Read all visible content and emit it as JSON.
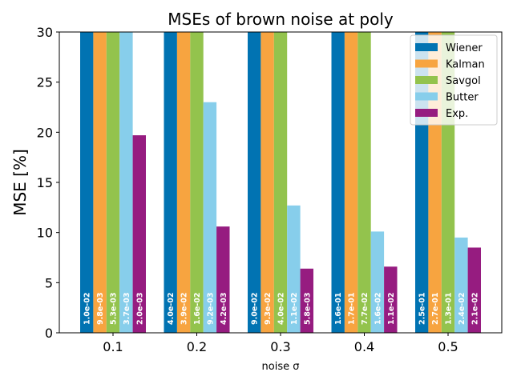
{
  "chart_data": {
    "type": "bar",
    "title": "MSEs of brown noise at poly",
    "xlabel": "noise σ",
    "ylabel": "MSE [%]",
    "ylim": [
      0,
      30
    ],
    "yticks": [
      0,
      5,
      10,
      15,
      20,
      25,
      30
    ],
    "categories": [
      "0.1",
      "0.2",
      "0.3",
      "0.4",
      "0.5"
    ],
    "legend_position": "top-right",
    "grid": false,
    "series": [
      {
        "name": "Wiener",
        "color": "#0173b2",
        "values": [
          30,
          30,
          30,
          30,
          30
        ],
        "labels": [
          "1.0e-02",
          "4.0e-02",
          "9.0e-02",
          "1.6e-01",
          "2.5e-01"
        ]
      },
      {
        "name": "Kalman",
        "color": "#f7a440",
        "values": [
          30,
          30,
          30,
          30,
          30
        ],
        "labels": [
          "9.8e-03",
          "3.9e-02",
          "9.3e-02",
          "1.7e-01",
          "2.7e-01"
        ]
      },
      {
        "name": "Savgol",
        "color": "#93c34d",
        "values": [
          30,
          30,
          30,
          30,
          30
        ],
        "labels": [
          "5.3e-03",
          "1.6e-02",
          "4.0e-02",
          "7.7e-02",
          "1.3e-01"
        ]
      },
      {
        "name": "Butter",
        "color": "#87ceeb",
        "values": [
          30,
          23.0,
          12.7,
          10.1,
          9.5
        ],
        "labels": [
          "3.7e-03",
          "9.2e-03",
          "1.1e-02",
          "1.6e-02",
          "2.4e-02"
        ]
      },
      {
        "name": "Exp.",
        "color": "#961c80",
        "values": [
          19.7,
          10.6,
          6.4,
          6.6,
          8.5
        ],
        "labels": [
          "2.0e-03",
          "4.2e-03",
          "5.8e-03",
          "1.1e-02",
          "2.1e-02"
        ]
      }
    ]
  }
}
